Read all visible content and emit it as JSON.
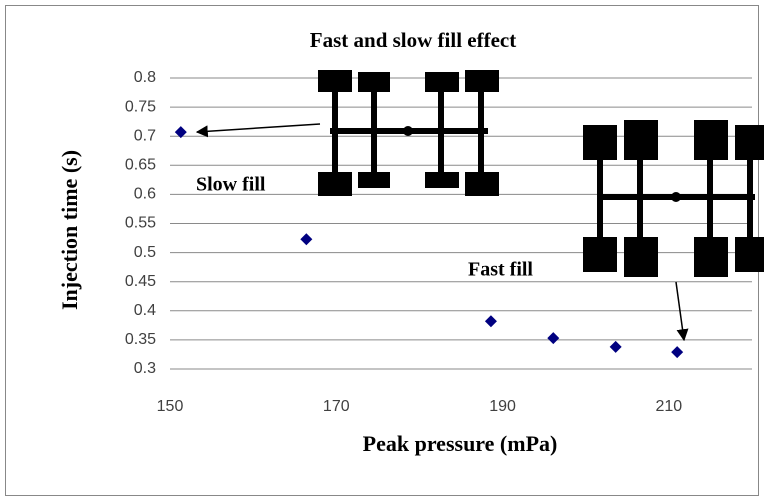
{
  "chart_data": {
    "type": "scatter",
    "title": "Fast and slow fill effect",
    "x_label": "Peak pressure (mPa)",
    "y_label": "Injection time (s)",
    "x": [
      151.3,
      166.4,
      188.6,
      196.1,
      203.6,
      211
    ],
    "values": [
      0.707,
      0.523,
      0.382,
      0.353,
      0.338,
      0.329
    ],
    "color": "#000080",
    "xlim": [
      150,
      220
    ],
    "ylim": [
      0.3,
      0.8
    ],
    "xticks": [
      150,
      170,
      190,
      210
    ],
    "yticks": [
      0.3,
      0.35,
      0.4,
      0.45,
      0.5,
      0.55,
      0.6,
      0.65,
      0.7,
      0.75,
      0.8
    ],
    "grid": true,
    "annotations": [
      "Slow fill",
      "Fast fill"
    ]
  }
}
